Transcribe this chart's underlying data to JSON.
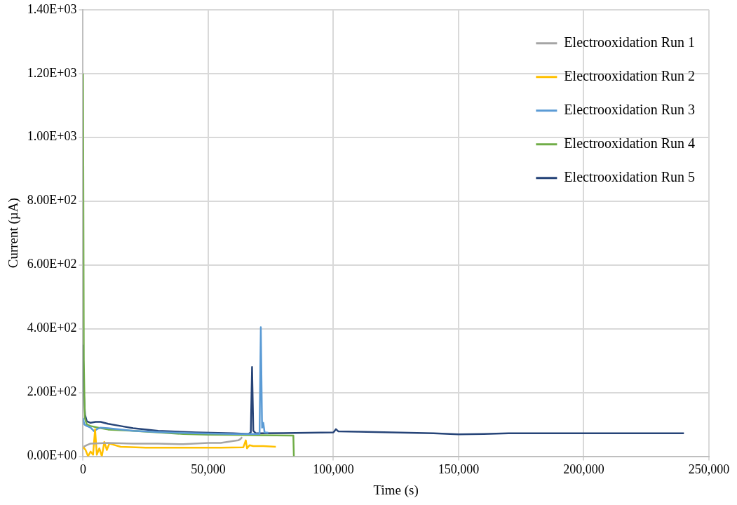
{
  "chart_data": {
    "type": "line",
    "xlabel": "Time (s)",
    "ylabel": "Current (µA)",
    "xlim": [
      0,
      250000
    ],
    "ylim": [
      0,
      1400
    ],
    "xticks": [
      {
        "value": 0,
        "label": "0"
      },
      {
        "value": 50000,
        "label": "50,000"
      },
      {
        "value": 100000,
        "label": "100,000"
      },
      {
        "value": 150000,
        "label": "150,000"
      },
      {
        "value": 200000,
        "label": "200,000"
      },
      {
        "value": 250000,
        "label": "250,000"
      }
    ],
    "yticks": [
      {
        "value": 0,
        "label": "0.00E+00"
      },
      {
        "value": 200,
        "label": "2.00E+02"
      },
      {
        "value": 400,
        "label": "4.00E+02"
      },
      {
        "value": 600,
        "label": "6.00E+02"
      },
      {
        "value": 800,
        "label": "8.00E+02"
      },
      {
        "value": 1000,
        "label": "1.00E+03"
      },
      {
        "value": 1200,
        "label": "1.20E+03"
      },
      {
        "value": 1400,
        "label": "1.40E+03"
      }
    ],
    "grid": true,
    "legend": "top right",
    "marker": "none",
    "line_style": "solid",
    "series": [
      {
        "name": "Electrooxidation Run 1",
        "color": "#a5a5a5",
        "x": [
          300,
          1500,
          3000,
          10000,
          20000,
          30000,
          40000,
          50000,
          55000,
          60000,
          62000,
          63000,
          63500
        ],
        "values": [
          30,
          35,
          40,
          42,
          40,
          40,
          38,
          42,
          42,
          48,
          50,
          55,
          60
        ]
      },
      {
        "name": "Electrooxidation Run 2",
        "color": "#ffc000",
        "x": [
          0,
          1000,
          2000,
          3000,
          4000,
          4800,
          5500,
          6500,
          7500,
          8500,
          9500,
          10500,
          15000,
          25000,
          40000,
          55000,
          64000,
          65000,
          65500,
          66500,
          68000,
          72000,
          77000
        ],
        "values": [
          30,
          20,
          0,
          15,
          5,
          85,
          5,
          25,
          0,
          45,
          20,
          40,
          30,
          27,
          27,
          27,
          28,
          50,
          25,
          35,
          32,
          32,
          30
        ]
      },
      {
        "name": "Electrooxidation Run 3",
        "color": "#5b9bd5",
        "x": [
          0,
          500,
          1500,
          3000,
          4500,
          5500,
          7000,
          10000,
          20000,
          30000,
          45000,
          60000,
          66000,
          70500,
          71000,
          71500,
          72000,
          72500,
          74000
        ],
        "values": [
          120,
          100,
          95,
          90,
          78,
          85,
          90,
          88,
          80,
          76,
          72,
          70,
          70,
          70,
          405,
          90,
          105,
          75,
          74
        ]
      },
      {
        "name": "Electrooxidation Run 4",
        "color": "#70ad47",
        "x": [
          0,
          300,
          700,
          1500,
          3000,
          6000,
          10000,
          20000,
          30000,
          40000,
          50000,
          60000,
          70000,
          84000,
          84200
        ],
        "values": [
          1200,
          300,
          120,
          100,
          95,
          90,
          84,
          80,
          75,
          70,
          68,
          67,
          66,
          65,
          0
        ]
      },
      {
        "name": "Electrooxidation Run 5",
        "color": "#264478",
        "x": [
          0,
          300,
          800,
          1500,
          3000,
          5000,
          7000,
          10000,
          15000,
          20000,
          30000,
          45000,
          60000,
          66000,
          67000,
          67500,
          68000,
          69000,
          70000,
          80000,
          90000,
          100000,
          101000,
          102000,
          110000,
          130000,
          140000,
          150000,
          160000,
          170000,
          200000,
          240000
        ],
        "values": [
          350,
          200,
          130,
          110,
          105,
          108,
          108,
          102,
          95,
          88,
          80,
          75,
          72,
          70,
          75,
          280,
          80,
          72,
          72,
          73,
          74,
          75,
          85,
          78,
          77,
          74,
          72,
          69,
          70,
          72,
          72,
          72
        ]
      }
    ]
  }
}
